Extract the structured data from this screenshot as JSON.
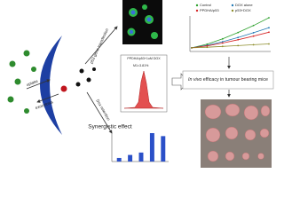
{
  "labels": {
    "uptake": "uptake",
    "exocytosis": "exocytosis",
    "transfection": "p53 gene transfection",
    "retention": "Dox retention",
    "synergy": "Synergistic effect",
    "invivo_italic": "In vivo",
    "invivo_rest": "efficacy in tumour bearing mice"
  },
  "flow": {
    "title": "PPDHA/p53+1uM DOX",
    "gate": "M1=3.81%"
  },
  "tumour_growth": {
    "series": [
      {
        "name": "Control",
        "color": "#2ca02c",
        "values": [
          100,
          230,
          420,
          650,
          900,
          1180
        ]
      },
      {
        "name": "DOX alone",
        "color": "#1f77b4",
        "values": [
          100,
          190,
          320,
          470,
          640,
          820
        ]
      },
      {
        "name": "PPDHA/p53",
        "color": "#d62728",
        "values": [
          100,
          170,
          270,
          390,
          520,
          660
        ]
      },
      {
        "name": "p53+DOX",
        "color": "#8c8c2a",
        "values": [
          100,
          120,
          150,
          180,
          210,
          240
        ]
      }
    ]
  },
  "dox_retention": {
    "color": "#2b50c8",
    "values": [
      12,
      22,
      30,
      95,
      85
    ]
  }
}
